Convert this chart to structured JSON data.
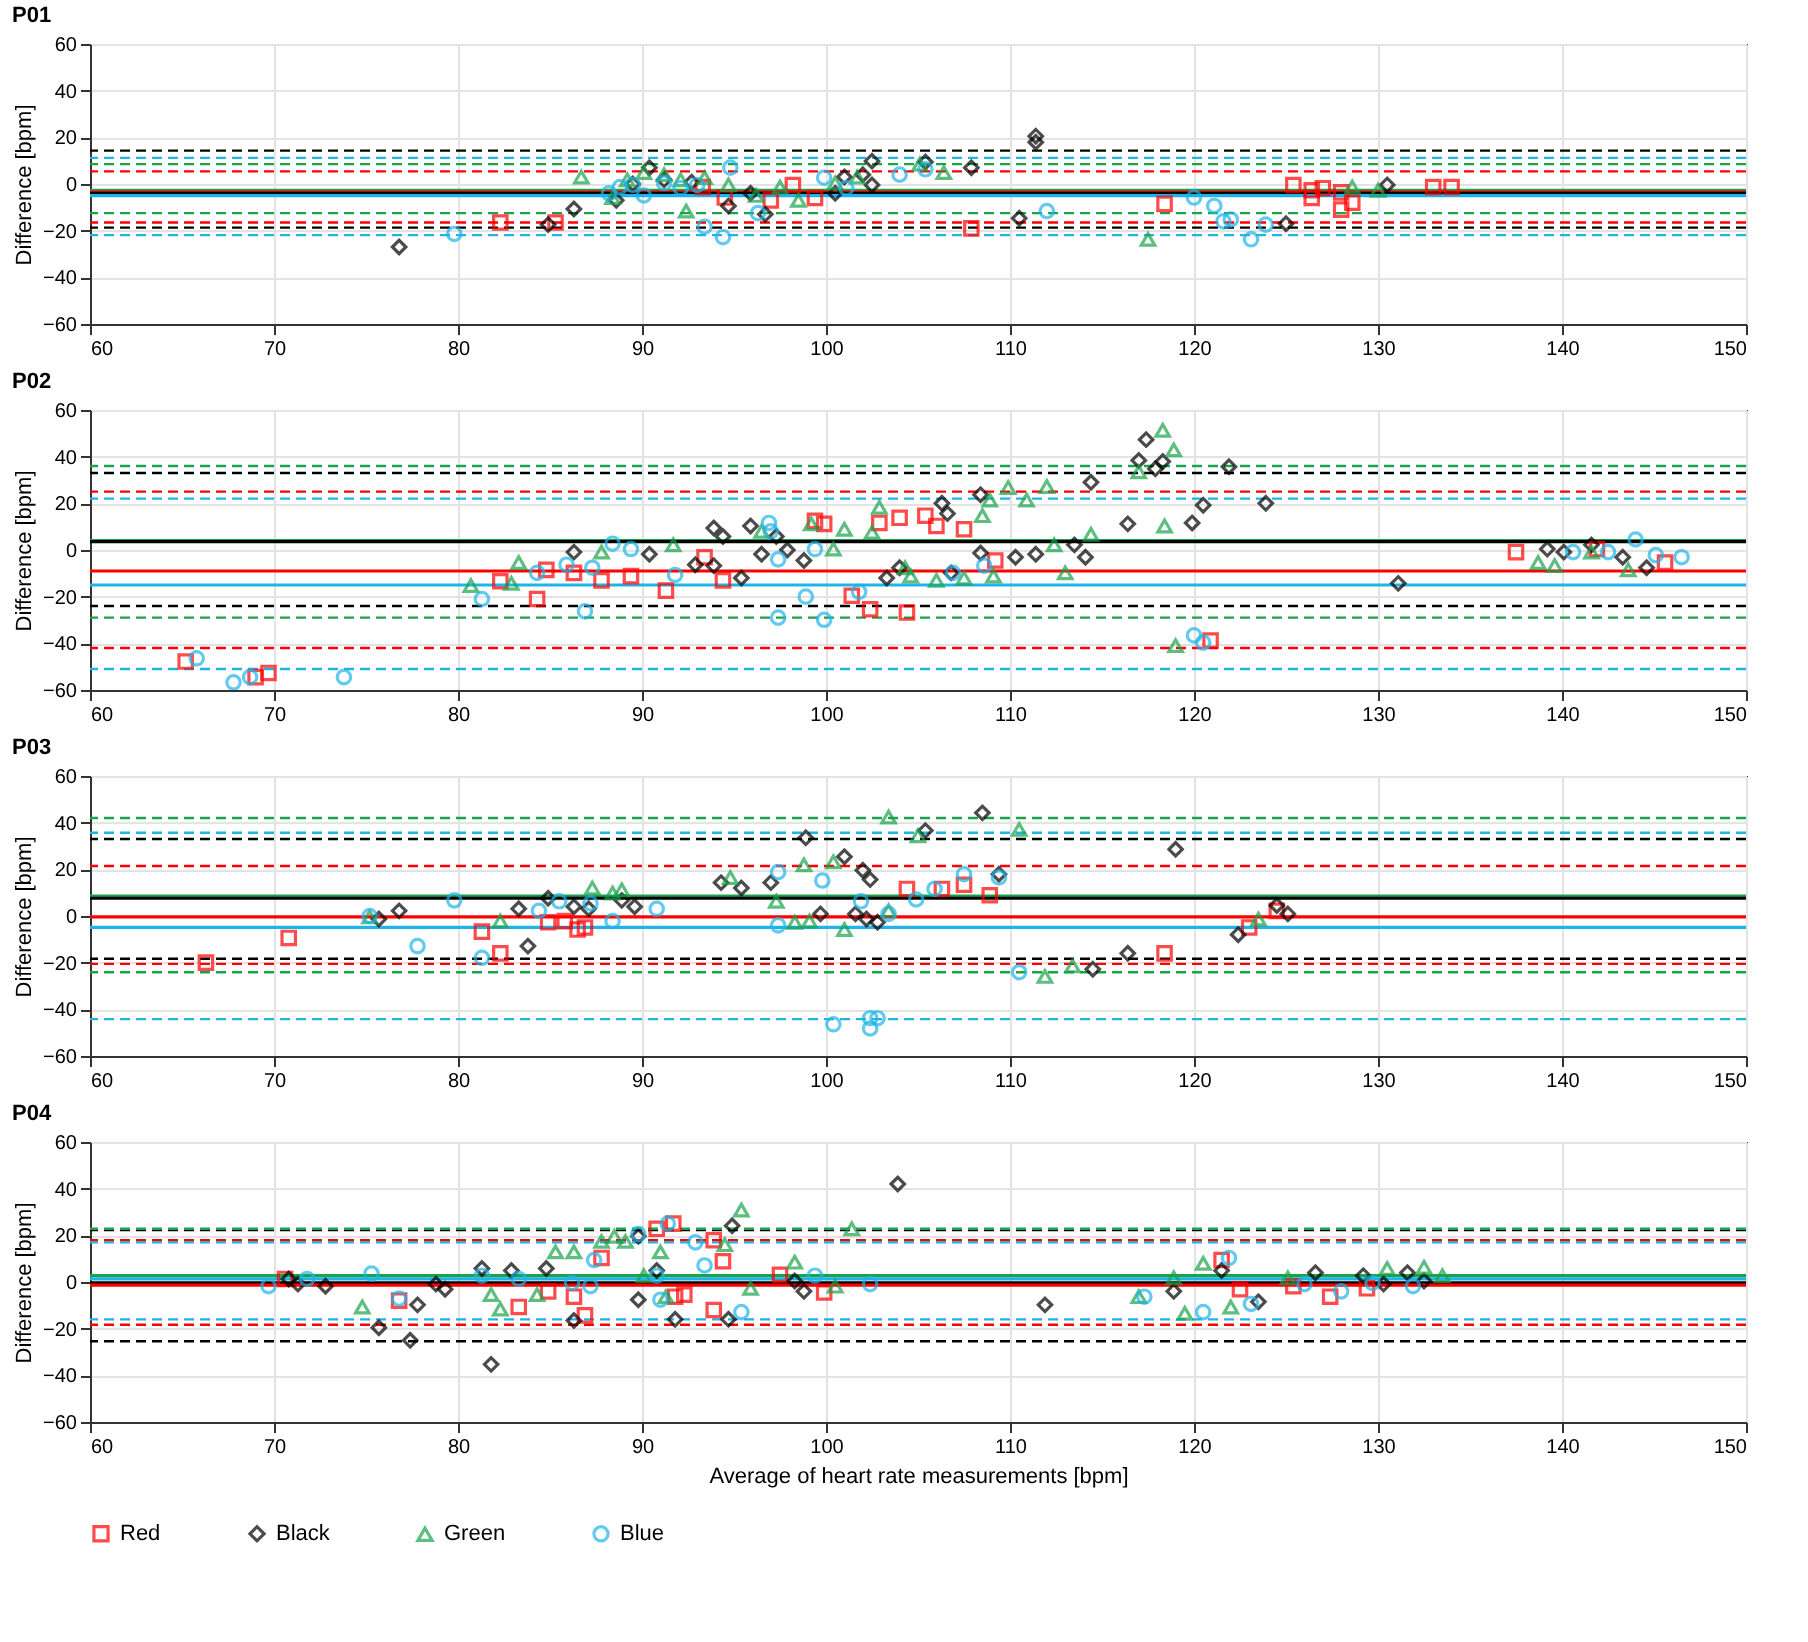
{
  "chart_data": [
    {
      "type": "scatter",
      "title": "P01",
      "ylabel": "Difference [bpm]",
      "xlim": [
        60,
        150
      ],
      "xticks": [
        60,
        70,
        80,
        90,
        100,
        110,
        120,
        130,
        140,
        150
      ],
      "ylim": [
        -60,
        60
      ],
      "yticks": [
        -60,
        -40,
        -20,
        0,
        20,
        40,
        60
      ],
      "grid": true,
      "ref_lines": [
        {
          "axis": "y",
          "value": 14.3,
          "color": "#000000",
          "line_style": "dashed"
        },
        {
          "axis": "y",
          "value": 11.2,
          "color": "#1fb4e8",
          "line_style": "dashed"
        },
        {
          "axis": "y",
          "value": 8.5,
          "color": "#1aa34a",
          "line_style": "dashed"
        },
        {
          "axis": "y",
          "value": 5.4,
          "color": "#ff0000",
          "line_style": "dashed"
        },
        {
          "axis": "y",
          "value": -2.7,
          "color": "#1aa34a",
          "line_style": "solid"
        },
        {
          "axis": "y",
          "value": -3.5,
          "color": "#ff0000",
          "line_style": "solid"
        },
        {
          "axis": "y",
          "value": -4,
          "color": "#000000",
          "line_style": "solid"
        },
        {
          "axis": "y",
          "value": -5,
          "color": "#1fb4e8",
          "line_style": "solid"
        },
        {
          "axis": "y",
          "value": -12.5,
          "color": "#1aa34a",
          "line_style": "dashed"
        },
        {
          "axis": "y",
          "value": -16.5,
          "color": "#ff0000",
          "line_style": "dashed"
        },
        {
          "axis": "y",
          "value": -18.7,
          "color": "#000000",
          "line_style": "dashed"
        },
        {
          "axis": "y",
          "value": -21.9,
          "color": "#1fb4e8",
          "line_style": "dashed"
        }
      ],
      "series": [
        {
          "color": "#ff0000",
          "marker": "square",
          "x": [
            82.3,
            85.3,
            93.3,
            94.5,
            97,
            98.2,
            99.4,
            107.9,
            118.4,
            125.4,
            126.4,
            126.4,
            127,
            128,
            128,
            128.6,
            133,
            134
          ],
          "values": [
            -16.5,
            -16.5,
            -1.3,
            -5.8,
            -7,
            -0.5,
            -6,
            -19,
            -8.5,
            -0.5,
            -6,
            -2.7,
            -1.8,
            -3.6,
            -11,
            -8,
            -1.3,
            -1.3
          ]
        },
        {
          "color": "#000000",
          "marker": "diamond",
          "x": [
            76.8,
            84.9,
            86.3,
            88.6,
            89.5,
            90.4,
            91.2,
            92.7,
            94.7,
            95.9,
            96.7,
            100.5,
            101,
            102,
            102.5,
            102.5,
            105.4,
            107.9,
            110.5,
            111.4,
            111.4,
            125,
            130.5
          ],
          "values": [
            -27,
            -17.4,
            -10.7,
            -7,
            0,
            7,
            1.8,
            0.8,
            -9.4,
            -4,
            -13,
            -4,
            3,
            4,
            9.8,
            -0.4,
            9.4,
            7,
            -14.7,
            20.5,
            17.9,
            -17,
            -0.4
          ]
        },
        {
          "color": "#1aa34a",
          "marker": "triangle",
          "x": [
            86.7,
            88.4,
            89.2,
            90.1,
            91.2,
            92.1,
            92.4,
            93.4,
            94.7,
            96.2,
            97.5,
            98.5,
            100.5,
            101.7,
            105.1,
            106.4,
            117.5,
            128.6,
            130
          ],
          "values": [
            3,
            -5.8,
            1.8,
            4.9,
            4,
            1.8,
            -11.6,
            2.7,
            -0.4,
            -4.9,
            -1.3,
            -7,
            0.4,
            3,
            8.5,
            4.9,
            -23.7,
            -1.3,
            -2.7
          ]
        },
        {
          "color": "#1fb4e8",
          "marker": "circle",
          "x": [
            79.8,
            88.2,
            88.8,
            89.5,
            90.1,
            91.2,
            92.1,
            93,
            93.4,
            94.4,
            94.8,
            96.3,
            99.9,
            101.1,
            104,
            105.4,
            112,
            120,
            121.1,
            121.6,
            122,
            123.1,
            123.9
          ],
          "values": [
            -21.4,
            -4,
            -1.3,
            -0.4,
            -4.9,
            0.4,
            -1.8,
            -0.4,
            -18.3,
            -22.8,
            7,
            -12.5,
            2.7,
            -1.8,
            4,
            6.3,
            -11.6,
            -5.8,
            -9.4,
            -16,
            -15.2,
            -23.7,
            -17.4
          ]
        }
      ]
    },
    {
      "type": "scatter",
      "title": "P02",
      "ylabel": "Difference [bpm]",
      "xlim": [
        60,
        150
      ],
      "xticks": [
        60,
        70,
        80,
        90,
        100,
        110,
        120,
        130,
        140,
        150
      ],
      "ylim": [
        -60,
        60
      ],
      "yticks": [
        -60,
        -40,
        -20,
        0,
        20,
        40,
        60
      ],
      "grid": true,
      "ref_lines": [
        {
          "axis": "y",
          "value": 36,
          "color": "#1aa34a",
          "line_style": "dashed"
        },
        {
          "axis": "y",
          "value": 33,
          "color": "#000000",
          "line_style": "dashed"
        },
        {
          "axis": "y",
          "value": 25,
          "color": "#ff0000",
          "line_style": "dashed"
        },
        {
          "axis": "y",
          "value": 22,
          "color": "#1fb4e8",
          "line_style": "dashed"
        },
        {
          "axis": "y",
          "value": 4,
          "color": "#1aa34a",
          "line_style": "solid"
        },
        {
          "axis": "y",
          "value": 3.6,
          "color": "#000000",
          "line_style": "solid"
        },
        {
          "axis": "y",
          "value": -9,
          "color": "#ff0000",
          "line_style": "solid"
        },
        {
          "axis": "y",
          "value": -15,
          "color": "#1fb4e8",
          "line_style": "solid"
        },
        {
          "axis": "y",
          "value": -24,
          "color": "#000000",
          "line_style": "dashed"
        },
        {
          "axis": "y",
          "value": -29,
          "color": "#1aa34a",
          "line_style": "dashed"
        },
        {
          "axis": "y",
          "value": -42,
          "color": "#ff0000",
          "line_style": "dashed"
        },
        {
          "axis": "y",
          "value": -51,
          "color": "#1fb4e8",
          "line_style": "dashed"
        }
      ],
      "series": [
        {
          "color": "#ff0000",
          "marker": "square",
          "x": [
            65.2,
            69,
            69.7,
            82.3,
            84.3,
            84.8,
            86.3,
            87.8,
            89.4,
            91.3,
            93.4,
            94.4,
            99.4,
            99.9,
            101.4,
            102.4,
            102.9,
            104,
            104.4,
            105.4,
            106,
            107.5,
            109.2,
            120.9,
            137.5,
            141.9,
            145.6
          ],
          "values": [
            -47.8,
            -54.5,
            -52.7,
            -13.4,
            -21,
            -8.5,
            -9.8,
            -13,
            -11.2,
            -17.4,
            -3.1,
            -13,
            12.5,
            11.2,
            -19.6,
            -25.4,
            11.6,
            13.8,
            -26.8,
            14.7,
            10.3,
            8.9,
            -4.5,
            -38.8,
            -0.9,
            0.4,
            -5.4
          ]
        },
        {
          "color": "#000000",
          "marker": "diamond",
          "x": [
            86.3,
            90.4,
            92.9,
            93.9,
            93.9,
            94.4,
            95.4,
            95.9,
            96.5,
            97.3,
            97.9,
            98.8,
            103.3,
            104,
            106.3,
            106.6,
            106.8,
            108.4,
            108.4,
            110.3,
            111.4,
            113.5,
            114.1,
            114.4,
            116.4,
            117,
            117.4,
            117.9,
            118.3,
            119.9,
            120.5,
            121.9,
            123.9,
            131.1,
            139.2,
            140.1,
            141.6,
            143.3,
            144.6
          ],
          "values": [
            -0.9,
            -1.8,
            -6.3,
            9.4,
            -6.7,
            5.8,
            -12,
            10.3,
            -1.8,
            5.8,
            0,
            -4.5,
            -12,
            -7.6,
            20,
            15.6,
            -9.8,
            23.7,
            -1.3,
            -3.1,
            -1.8,
            2.2,
            -3.1,
            29,
            11.2,
            38.4,
            47.3,
            34.8,
            37.9,
            11.6,
            19.2,
            35.7,
            20,
            -14.3,
            0.4,
            -0.9,
            2.2,
            -3.1,
            -7.6
          ]
        },
        {
          "color": "#1aa34a",
          "marker": "triangle",
          "x": [
            80.7,
            82.9,
            83.3,
            87.8,
            91.7,
            96.5,
            99.2,
            100.4,
            101,
            102.5,
            102.9,
            104.3,
            104.6,
            106,
            107.5,
            108.5,
            108.9,
            109.1,
            109.9,
            110.9,
            112,
            112.4,
            113,
            114.4,
            117,
            118.3,
            118.4,
            118.9,
            119,
            138.7,
            139.6,
            141.6,
            143.6
          ],
          "values": [
            -15.2,
            -14.3,
            -5.4,
            -0.9,
            2.2,
            8,
            11.2,
            0.4,
            8.9,
            7.6,
            18.3,
            -7.6,
            -11.2,
            -13,
            -12,
            14.7,
            21.4,
            -11.2,
            26.8,
            21.4,
            27.2,
            2.2,
            -9.8,
            6.7,
            33.5,
            51.3,
            10.3,
            42.9,
            -41,
            -5.4,
            -6.7,
            -0.9,
            -8.5
          ]
        },
        {
          "color": "#1fb4e8",
          "marker": "circle",
          "x": [
            65.8,
            67.8,
            68.7,
            73.8,
            81.3,
            84.3,
            85.9,
            86.9,
            87.3,
            88.4,
            89.4,
            91.8,
            96.9,
            97,
            97.4,
            97.4,
            98.9,
            99.4,
            99.9,
            101.8,
            106.9,
            108.6,
            120,
            120.5,
            140.6,
            142.5,
            144,
            145.1,
            146.5
          ],
          "values": [
            -46.4,
            -56.7,
            -54.5,
            -54.5,
            -21,
            -9.8,
            -6.3,
            -26.3,
            -7.6,
            2.7,
            0.4,
            -10.7,
            11.6,
            8,
            -4,
            -29,
            -20,
            0.4,
            -29.9,
            -17.9,
            -9.8,
            -6.7,
            -36.6,
            -39.7,
            -0.9,
            -0.9,
            4.5,
            -2.2,
            -3.1
          ]
        }
      ]
    },
    {
      "type": "scatter",
      "title": "P03",
      "ylabel": "Difference [bpm]",
      "xlim": [
        60,
        150
      ],
      "xticks": [
        60,
        70,
        80,
        90,
        100,
        110,
        120,
        130,
        140,
        150
      ],
      "ylim": [
        -60,
        60
      ],
      "yticks": [
        -60,
        -40,
        -20,
        0,
        20,
        40,
        60
      ],
      "grid": true,
      "ref_lines": [
        {
          "axis": "y",
          "value": 42,
          "color": "#1aa34a",
          "line_style": "dashed"
        },
        {
          "axis": "y",
          "value": 35.7,
          "color": "#1fb4e8",
          "line_style": "dashed"
        },
        {
          "axis": "y",
          "value": 33,
          "color": "#000000",
          "line_style": "dashed"
        },
        {
          "axis": "y",
          "value": 21.4,
          "color": "#ff0000",
          "line_style": "dashed"
        },
        {
          "axis": "y",
          "value": 8.5,
          "color": "#1aa34a",
          "line_style": "solid"
        },
        {
          "axis": "y",
          "value": 7.6,
          "color": "#000000",
          "line_style": "solid"
        },
        {
          "axis": "y",
          "value": -0.4,
          "color": "#ff0000",
          "line_style": "solid"
        },
        {
          "axis": "y",
          "value": -4.9,
          "color": "#1fb4e8",
          "line_style": "solid"
        },
        {
          "axis": "y",
          "value": -18.3,
          "color": "#000000",
          "line_style": "dashed"
        },
        {
          "axis": "y",
          "value": -20.5,
          "color": "#ff0000",
          "line_style": "dashed"
        },
        {
          "axis": "y",
          "value": -24.1,
          "color": "#1aa34a",
          "line_style": "dashed"
        },
        {
          "axis": "y",
          "value": -44.2,
          "color": "#1fb4e8",
          "line_style": "dashed"
        }
      ],
      "series": [
        {
          "color": "#ff0000",
          "marker": "square",
          "x": [
            66.3,
            70.8,
            81.3,
            82.3,
            84.9,
            85.8,
            86.5,
            86.9,
            104.4,
            106.3,
            107.5,
            108.9,
            118.4,
            123,
            124.5
          ],
          "values": [
            -20,
            -9.4,
            -6.7,
            -16,
            -2.7,
            -2.2,
            -5.8,
            -4.9,
            11.6,
            11.6,
            13.4,
            8.9,
            -16,
            -4.9,
            2.2
          ]
        },
        {
          "color": "#000000",
          "marker": "diamond",
          "x": [
            75.7,
            76.8,
            83.3,
            83.8,
            84.9,
            86.3,
            87.1,
            88.9,
            89.6,
            94.3,
            95.4,
            97,
            98.9,
            99.7,
            101,
            101.6,
            102,
            102.2,
            102.4,
            102.8,
            105.4,
            108.5,
            109.4,
            114.5,
            116.4,
            119,
            122.4,
            124.5,
            125.1
          ],
          "values": [
            -1.3,
            2.2,
            3.1,
            -12.9,
            7.6,
            4,
            3.1,
            6.7,
            4,
            14.3,
            12,
            14.3,
            33.5,
            0.9,
            25.4,
            0.9,
            19.6,
            -1.3,
            15.6,
            -2.7,
            36.6,
            44.2,
            17.9,
            -22.8,
            -16,
            28.6,
            -8,
            4.5,
            0.9
          ]
        },
        {
          "color": "#1aa34a",
          "marker": "triangle",
          "x": [
            75.2,
            82.3,
            87.3,
            88.4,
            88.9,
            94.8,
            97.3,
            98.3,
            98.8,
            99.1,
            100.4,
            101,
            103.4,
            103.4,
            105,
            110.5,
            111.9,
            113.4,
            123.5
          ],
          "values": [
            -0.4,
            -2.2,
            12,
            9.8,
            11.2,
            16.5,
            6.3,
            -2.7,
            21.9,
            -2.2,
            23.2,
            -5.8,
            2.2,
            42.4,
            34.4,
            37.1,
            -25.9,
            -21.4,
            -1.3
          ]
        },
        {
          "color": "#1fb4e8",
          "marker": "circle",
          "x": [
            75.2,
            77.8,
            79.8,
            81.3,
            84.4,
            85.5,
            87.2,
            88.4,
            90.8,
            97.4,
            97.4,
            99.8,
            101.9,
            103.4,
            104.9,
            105.9,
            107.5,
            109.4,
            110.5,
            100.4,
            102.4,
            102.4,
            102.8
          ],
          "values": [
            0,
            -12.9,
            6.7,
            -17.9,
            2.2,
            6.3,
            5.4,
            -2.2,
            3.1,
            18.8,
            -4,
            15.2,
            6.3,
            0.9,
            7.1,
            11.6,
            17.9,
            16.5,
            -24.1,
            -46.4,
            -48.2,
            -43.8,
            -43.8
          ]
        }
      ]
    },
    {
      "type": "scatter",
      "title": "P04",
      "ylabel": "Difference [bpm]",
      "xlabel": "Average of heart rate measurements [bpm]",
      "xlim": [
        60,
        150
      ],
      "xticks": [
        60,
        70,
        80,
        90,
        100,
        110,
        120,
        130,
        140,
        150
      ],
      "ylim": [
        -60,
        60
      ],
      "yticks": [
        -60,
        -40,
        -20,
        0,
        20,
        40,
        60
      ],
      "grid": true,
      "legend": "bottom",
      "ref_lines": [
        {
          "axis": "y",
          "value": 22.3,
          "color": "#000000",
          "line_style": "dashed"
        },
        {
          "axis": "y",
          "value": 22.8,
          "color": "#1aa34a",
          "line_style": "dashed"
        },
        {
          "axis": "y",
          "value": 17.9,
          "color": "#ff0000",
          "line_style": "dashed"
        },
        {
          "axis": "y",
          "value": 17,
          "color": "#1fb4e8",
          "line_style": "dashed"
        },
        {
          "axis": "y",
          "value": 2.7,
          "color": "#1aa34a",
          "line_style": "solid"
        },
        {
          "axis": "y",
          "value": 1.3,
          "color": "#1fb4e8",
          "line_style": "solid"
        },
        {
          "axis": "y",
          "value": -0.4,
          "color": "#000000",
          "line_style": "solid"
        },
        {
          "axis": "y",
          "value": -1.3,
          "color": "#ff0000",
          "line_style": "solid"
        },
        {
          "axis": "y",
          "value": -16,
          "color": "#1fb4e8",
          "line_style": "dashed"
        },
        {
          "axis": "y",
          "value": -18.3,
          "color": "#ff0000",
          "line_style": "dashed"
        },
        {
          "axis": "y",
          "value": -25.4,
          "color": "#000000",
          "line_style": "dashed"
        }
      ],
      "series": [
        {
          "name": "Red",
          "color": "#ff0000",
          "marker": "square",
          "x": [
            70.6,
            76.8,
            83.3,
            84.9,
            86.3,
            86.9,
            87.8,
            90.8,
            91.7,
            91.8,
            92.3,
            93.9,
            93.9,
            94.4,
            97.5,
            99.9,
            121.5,
            122.5,
            125.4,
            127.4,
            129.4
          ],
          "values": [
            1.3,
            -8,
            -10.7,
            -4,
            -6.3,
            -14.3,
            10.3,
            22.8,
            25,
            -6.3,
            -5.4,
            17.9,
            -12,
            8.9,
            3.1,
            -4.5,
            9.4,
            -3.1,
            -1.8,
            -6.3,
            -2.7
          ]
        },
        {
          "name": "Black",
          "color": "#000000",
          "marker": "diamond",
          "x": [
            70.8,
            71.3,
            72.8,
            75.7,
            77.4,
            77.8,
            78.8,
            79.3,
            81.3,
            81.8,
            82.9,
            84.8,
            86.3,
            89.8,
            89.8,
            90.8,
            91.8,
            94.7,
            94.9,
            98.3,
            98.8,
            103.9,
            111.9,
            118.9,
            121.5,
            123.5,
            126.6,
            129.2,
            130.3,
            131.6,
            132.5
          ],
          "values": [
            1.3,
            -0.9,
            -1.8,
            -19.6,
            -25,
            -9.8,
            -0.9,
            -3.1,
            5.8,
            -35.3,
            4.9,
            5.8,
            -16.5,
            -7.6,
            19.6,
            4.9,
            -16,
            -16,
            24.1,
            0.4,
            -4,
            42,
            -9.8,
            -4,
            4.9,
            -8.5,
            4,
            2.7,
            -0.9,
            4,
            0.4
          ]
        },
        {
          "name": "Green",
          "color": "#1aa34a",
          "marker": "triangle",
          "x": [
            74.8,
            81.8,
            82.3,
            84.3,
            85.3,
            86.3,
            87.8,
            88.5,
            89.1,
            90.1,
            91,
            91.3,
            94.5,
            95.4,
            95.9,
            98.3,
            100.5,
            101.4,
            117,
            118.9,
            119.5,
            120.5,
            122,
            125.1,
            130.5,
            132.5,
            133.5
          ],
          "values": [
            -10.7,
            -5.4,
            -11.6,
            -5.4,
            12.9,
            12.9,
            17.4,
            19.6,
            17.4,
            2.7,
            12.9,
            -6.3,
            16,
            30.8,
            -2.7,
            8.5,
            -1.8,
            22.8,
            -6.3,
            1.8,
            -13.4,
            8,
            -10.7,
            1.8,
            5.8,
            6.3,
            2.7
          ]
        },
        {
          "name": "Blue",
          "color": "#1fb4e8",
          "marker": "circle",
          "x": [
            69.7,
            71.8,
            75.3,
            76.8,
            81.3,
            83.3,
            86.2,
            87.2,
            87.4,
            89.8,
            90.8,
            91,
            91.4,
            92.9,
            93.4,
            95.4,
            99.4,
            102.4,
            117.3,
            120.5,
            121.9,
            123.1,
            126,
            128,
            129.7,
            131.9
          ],
          "values": [
            -1.8,
            1.3,
            3.6,
            -7.1,
            2.7,
            1.3,
            -0.4,
            -1.8,
            9.4,
            20.5,
            2.7,
            -7.6,
            25,
            17,
            7.1,
            -12.9,
            2.7,
            -0.9,
            -6.3,
            -12.9,
            10.3,
            -9.4,
            -0.9,
            -4,
            -0.4,
            -1.8
          ]
        }
      ]
    }
  ]
}
